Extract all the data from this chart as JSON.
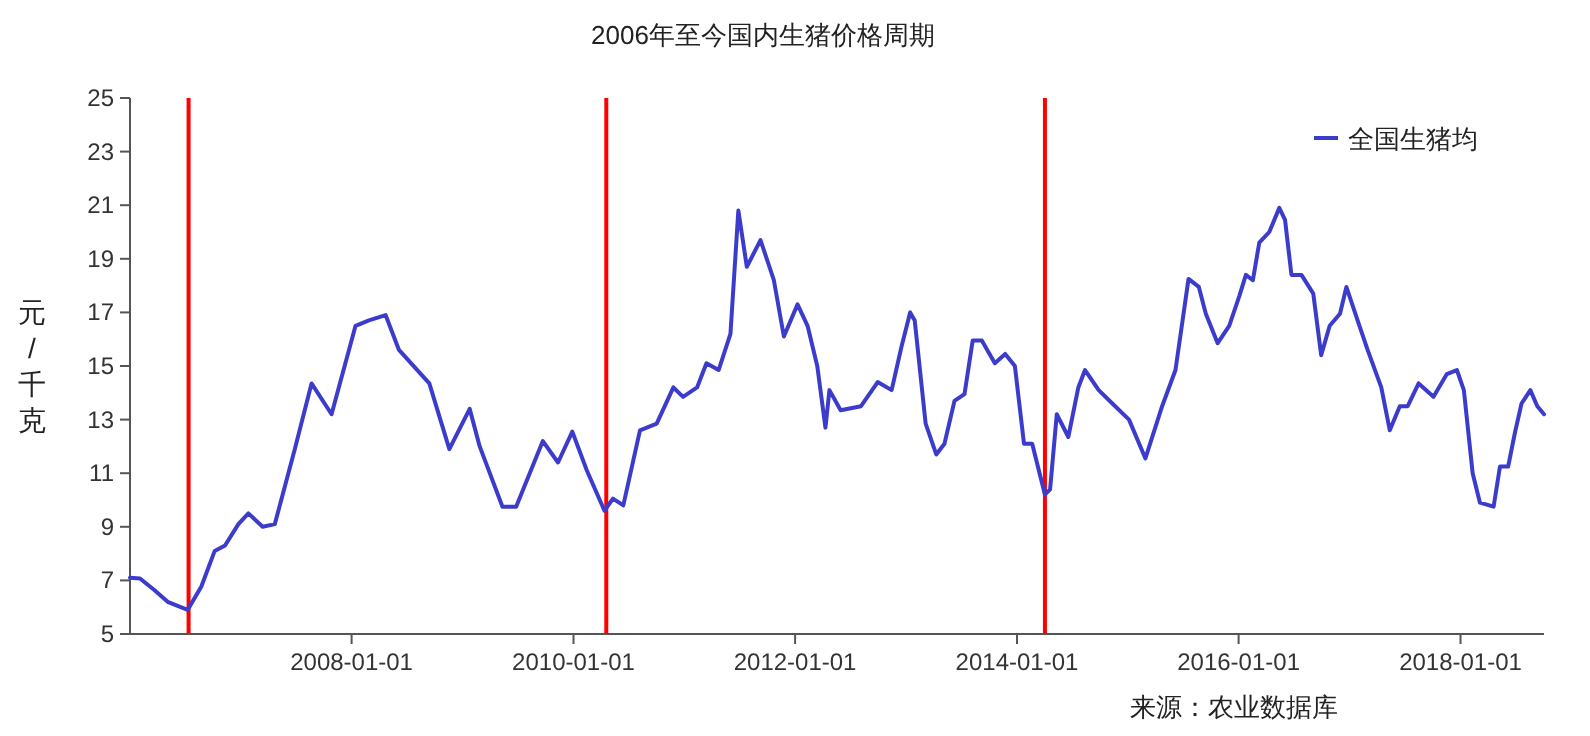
{
  "chart_data": {
    "type": "line",
    "title": "2006年至今国内生猪价格周期",
    "ylabel": "元/千克",
    "annotations": [
      "来源：农业数据库"
    ],
    "x": [
      "2006-01-01",
      "2006-02-03",
      "2006-03-22",
      "2006-05-05",
      "2006-07-10",
      "2006-08-24",
      "2006-10-07",
      "2006-11-10",
      "2006-12-24",
      "2007-01-26",
      "2007-03-14",
      "2007-04-23",
      "2007-06-28",
      "2007-08-22",
      "2007-10-27",
      "2008-01-14",
      "2008-02-27",
      "2008-04-22",
      "2008-06-05",
      "2008-09-13",
      "2008-11-18",
      "2009-01-24",
      "2009-02-26",
      "2009-05-12",
      "2009-06-26",
      "2009-09-22",
      "2009-11-11",
      "2009-12-28",
      "2010-02-14",
      "2010-04-13",
      "2010-05-11",
      "2010-06-14",
      "2010-08-08",
      "2010-10-02",
      "2010-11-26",
      "2010-12-28",
      "2011-02-12",
      "2011-03-15",
      "2011-04-24",
      "2011-06-02",
      "2011-06-28",
      "2011-07-26",
      "2011-09-09",
      "2011-10-23",
      "2011-11-25",
      "2012-01-09",
      "2012-02-11",
      "2012-03-14",
      "2012-04-10",
      "2012-04-23",
      "2012-05-30",
      "2012-08-05",
      "2012-09-29",
      "2012-11-14",
      "2012-12-16",
      "2013-01-14",
      "2013-01-29",
      "2013-03-06",
      "2013-04-10",
      "2013-05-07",
      "2013-06-09",
      "2013-07-12",
      "2013-08-08",
      "2013-09-07",
      "2013-10-20",
      "2013-11-23",
      "2013-12-25",
      "2014-01-24",
      "2014-02-20",
      "2014-04-03",
      "2014-04-20",
      "2014-05-12",
      "2014-06-19",
      "2014-07-22",
      "2014-08-13",
      "2014-09-27",
      "2014-11-11",
      "2015-01-05",
      "2015-02-28",
      "2015-04-24",
      "2015-06-07",
      "2015-07-20",
      "2015-08-23",
      "2015-09-15",
      "2015-10-24",
      "2015-12-01",
      "2016-01-03",
      "2016-01-25",
      "2016-02-17",
      "2016-03-09",
      "2016-04-11",
      "2016-05-14",
      "2016-06-02",
      "2016-06-23",
      "2016-07-26",
      "2016-09-03",
      "2016-09-29",
      "2016-10-27",
      "2016-11-30",
      "2016-12-21",
      "2017-01-30",
      "2017-03-01",
      "2017-04-15",
      "2017-05-13",
      "2017-06-15",
      "2017-07-11",
      "2017-08-16",
      "2017-10-04",
      "2017-11-17",
      "2017-12-20",
      "2018-01-12",
      "2018-02-10",
      "2018-03-06",
      "2018-04-20",
      "2018-05-11",
      "2018-06-07",
      "2018-06-29",
      "2018-07-21",
      "2018-08-19",
      "2018-09-11",
      "2018-10-03"
    ],
    "series": [
      {
        "name": "全国生猪均",
        "color": "#3c3ccc",
        "values": [
          7.1,
          7.07,
          6.64,
          6.2,
          5.9,
          6.77,
          8.1,
          8.3,
          9.1,
          9.5,
          9.0,
          9.1,
          11.9,
          14.35,
          13.2,
          16.5,
          16.7,
          16.9,
          15.6,
          14.35,
          11.9,
          13.4,
          12.0,
          9.75,
          9.75,
          12.2,
          11.4,
          12.55,
          11.1,
          9.6,
          10.05,
          9.8,
          12.6,
          12.85,
          14.2,
          13.85,
          14.2,
          15.1,
          14.85,
          16.2,
          20.8,
          18.7,
          19.7,
          18.2,
          16.1,
          17.3,
          16.5,
          15.0,
          12.7,
          14.1,
          13.35,
          13.5,
          14.4,
          14.1,
          15.7,
          17.0,
          16.7,
          12.85,
          11.7,
          12.1,
          13.7,
          13.95,
          15.95,
          15.95,
          15.1,
          15.45,
          15.0,
          12.1,
          12.1,
          10.2,
          10.4,
          13.2,
          12.35,
          14.2,
          14.85,
          14.1,
          13.6,
          13.0,
          11.55,
          13.5,
          14.85,
          18.25,
          17.95,
          16.95,
          15.85,
          16.5,
          17.6,
          18.4,
          18.2,
          19.6,
          20.0,
          20.9,
          20.45,
          18.4,
          18.4,
          17.7,
          15.4,
          16.5,
          16.95,
          17.95,
          16.6,
          15.6,
          14.2,
          12.6,
          13.5,
          13.5,
          14.35,
          13.85,
          14.7,
          14.85,
          14.1,
          11.0,
          9.9,
          9.75,
          11.25,
          11.25,
          12.5,
          13.6,
          14.1,
          13.5,
          13.2
        ]
      }
    ],
    "xlim": [
      "2006-01-01",
      "2018-10-03"
    ],
    "xticks": [
      {
        "value": "2008-01-01",
        "label": "2008-01-01"
      },
      {
        "value": "2010-01-01",
        "label": "2010-01-01"
      },
      {
        "value": "2012-01-01",
        "label": "2012-01-01"
      },
      {
        "value": "2014-01-01",
        "label": "2014-01-01"
      },
      {
        "value": "2016-01-01",
        "label": "2016-01-01"
      },
      {
        "value": "2018-01-01",
        "label": "2018-01-01"
      }
    ],
    "ylim": [
      5,
      25
    ],
    "yticks": [
      5,
      7,
      9,
      11,
      13,
      15,
      17,
      19,
      21,
      23,
      25
    ],
    "ref_lines": [
      {
        "axis": "x",
        "value": "2006-07-13",
        "color": "#ff0000"
      },
      {
        "axis": "x",
        "value": "2010-04-19",
        "color": "#ff0000"
      },
      {
        "axis": "x",
        "value": "2014-04-03",
        "color": "#ff0000"
      }
    ],
    "legend": "top right",
    "grid": false,
    "marker": "none",
    "line_style": "solid"
  }
}
